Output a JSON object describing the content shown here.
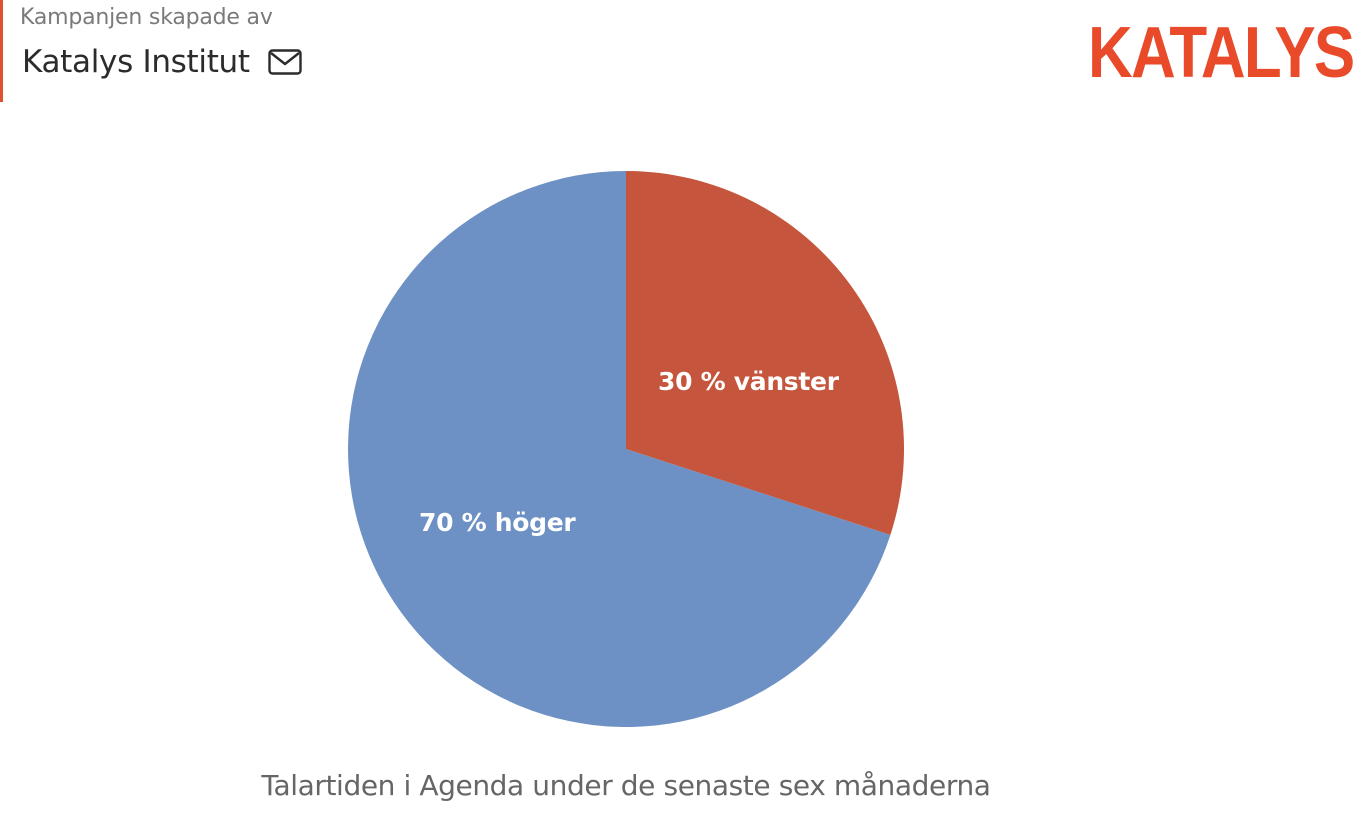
{
  "header": {
    "created_by_label": "Kampanjen skapade av",
    "creator_name": "Katalys Institut",
    "contact_icon": "mail-icon",
    "accent_color": "#e0522f"
  },
  "logo": {
    "text": "KATALYS.",
    "color": "#e84a2a"
  },
  "chart_data": {
    "type": "pie",
    "title": "",
    "caption": "Talartiden i Agenda under de senaste sex månaderna",
    "categories": [
      "vänster",
      "höger"
    ],
    "values": [
      30,
      70
    ],
    "unit": "%",
    "colors": [
      "#c5553c",
      "#6d91c4"
    ],
    "labels": [
      "30 % vänster",
      "70 % höger"
    ],
    "start_angle_deg": 0,
    "direction": "clockwise",
    "legend": "none (labels inside slices)"
  }
}
